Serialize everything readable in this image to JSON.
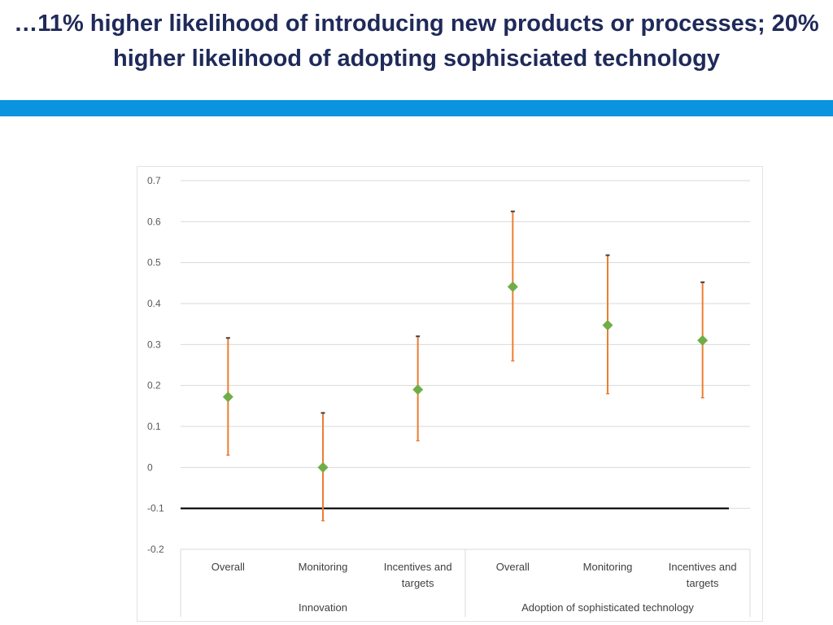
{
  "slide": {
    "title_line1": "…11% higher likelihood of introducing new products or processes; 20%",
    "title_line2": "higher likelihood of adopting sophisciated technology"
  },
  "colors": {
    "title": "#1f2a5a",
    "accent_bar": "#0a93df",
    "error_bar": "#ed7d31",
    "marker": "#70ad47",
    "reference_line": "#000000",
    "gridline": "#d9d9d9"
  },
  "chart_data": {
    "type": "scatter",
    "title": "",
    "xlabel": "",
    "ylabel": "",
    "ylim": [
      -0.2,
      0.7
    ],
    "yticks": [
      0.7,
      0.6,
      0.5,
      0.4,
      0.3,
      0.2,
      0.1,
      0,
      -0.1,
      -0.2
    ],
    "ytick_labels": [
      "0.7",
      "0.6",
      "0.5",
      "0.4",
      "0.3",
      "0.2",
      "0.1",
      "0",
      "-0.1",
      "-0.2"
    ],
    "grid": true,
    "reference_line": -0.1,
    "groups": [
      {
        "label": "Innovation",
        "span": 3
      },
      {
        "label": "Adoption of sophisticated technology",
        "span": 3
      }
    ],
    "points": [
      {
        "category": "Overall",
        "value": 0.172,
        "lower": 0.03,
        "upper": 0.316
      },
      {
        "category": "Monitoring",
        "value": 0.0,
        "lower": -0.13,
        "upper": 0.133
      },
      {
        "category": "Incentives and targets",
        "value": 0.19,
        "lower": 0.065,
        "upper": 0.32
      },
      {
        "category": "Overall",
        "value": 0.441,
        "lower": 0.26,
        "upper": 0.625
      },
      {
        "category": "Monitoring",
        "value": 0.347,
        "lower": 0.18,
        "upper": 0.518
      },
      {
        "category": "Incentives and targets",
        "value": 0.31,
        "lower": 0.17,
        "upper": 0.452
      }
    ]
  }
}
